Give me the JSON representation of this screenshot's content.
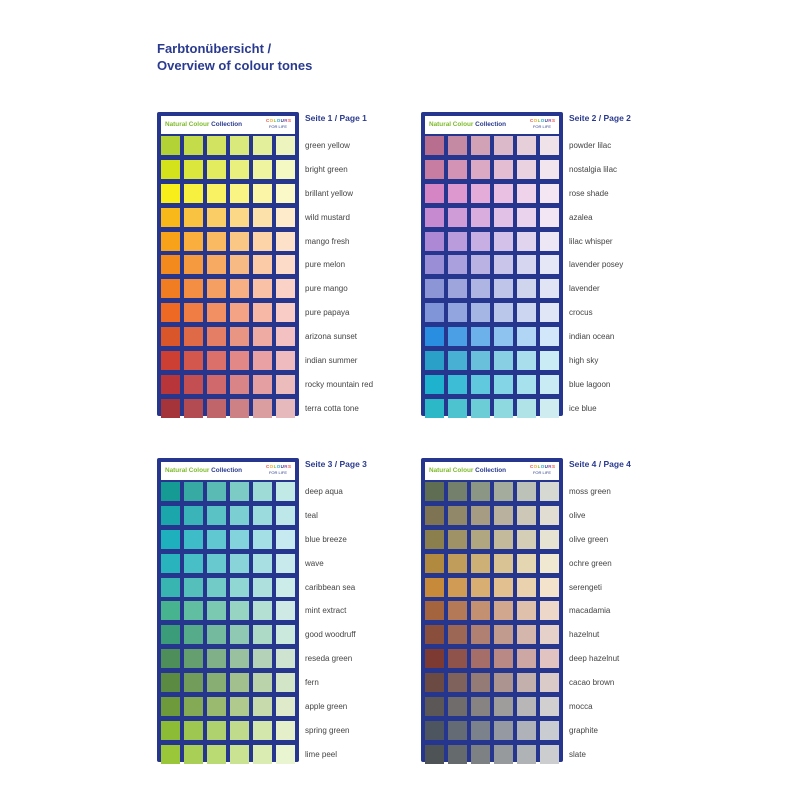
{
  "title": {
    "line1": "Farbtonübersicht /",
    "line2": "Overview of colour tones"
  },
  "card": {
    "brand_green": "Natural Colour",
    "brand_blue": "Collection",
    "cfl_line2": "FOR LIFE",
    "cfl_letters": [
      "C",
      "O",
      "L",
      "O",
      "U",
      "R",
      "S"
    ]
  },
  "pages": [
    {
      "label": "Seite 1 / Page 1",
      "rows": [
        {
          "name": "green yellow",
          "colors": [
            "#b2d235",
            "#c5dc4a",
            "#d1e361",
            "#dae97c",
            "#e4ef9b",
            "#edf4bd"
          ]
        },
        {
          "name": "bright green",
          "colors": [
            "#d4e21c",
            "#dce73d",
            "#e3ec5e",
            "#e9f07e",
            "#eff4a0",
            "#f4f8c3"
          ]
        },
        {
          "name": "brillant yellow",
          "colors": [
            "#f7ee1a",
            "#f8f03f",
            "#f9f263",
            "#faf485",
            "#fbf6a7",
            "#fcf9c8"
          ]
        },
        {
          "name": "wild mustard",
          "colors": [
            "#f9b81a",
            "#f9c240",
            "#facd66",
            "#fbd788",
            "#fce1aa",
            "#fdebcb"
          ]
        },
        {
          "name": "mango fresh",
          "colors": [
            "#f8a21a",
            "#f9ae3e",
            "#faba62",
            "#fbc785",
            "#fcd4a7",
            "#fde1c9"
          ]
        },
        {
          "name": "pure melon",
          "colors": [
            "#f38a1d",
            "#f59a3f",
            "#f7aa62",
            "#f8ba84",
            "#facba6",
            "#fcdbc8"
          ]
        },
        {
          "name": "pure mango",
          "colors": [
            "#f17d22",
            "#f38e42",
            "#f59f63",
            "#f7b084",
            "#f9c1a5",
            "#fbd3c6"
          ]
        },
        {
          "name": "pure papaya",
          "colors": [
            "#ee6a24",
            "#f07d43",
            "#f29063",
            "#f4a484",
            "#f7b8a5",
            "#f9ccc6"
          ]
        },
        {
          "name": "arizona sunset",
          "colors": [
            "#d9552a",
            "#df6a47",
            "#e47f65",
            "#e99584",
            "#eeaba3",
            "#f3c1c2"
          ]
        },
        {
          "name": "indian summer",
          "colors": [
            "#cc3f32",
            "#d4574d",
            "#db6f69",
            "#e28886",
            "#e9a1a3",
            "#f0bbbf"
          ]
        },
        {
          "name": "rocky mountain red",
          "colors": [
            "#b8363a",
            "#c44f53",
            "#cf696c",
            "#d98486",
            "#e39fa1",
            "#ecbcbd"
          ]
        },
        {
          "name": "terra cotta tone",
          "colors": [
            "#a4343a",
            "#b24c52",
            "#c0666b",
            "#cd8185",
            "#da9da0",
            "#e6babc"
          ]
        }
      ]
    },
    {
      "label": "Seite 2 / Page 2",
      "rows": [
        {
          "name": "powder lilac",
          "colors": [
            "#b86e8f",
            "#c58aa3",
            "#d1a2b6",
            "#dcb9c8",
            "#e6cfd9",
            "#efe3e9"
          ]
        },
        {
          "name": "nostalgia lilac",
          "colors": [
            "#c77ca2",
            "#d293b4",
            "#dba9c4",
            "#e3bed3",
            "#ebd2e1",
            "#f2e5ee"
          ]
        },
        {
          "name": "rose shade",
          "colors": [
            "#d584c4",
            "#dc98cf",
            "#e3acd9",
            "#e9c0e2",
            "#efd3eb",
            "#f5e6f3"
          ]
        },
        {
          "name": "azalea",
          "colors": [
            "#c68ad0",
            "#d09cd8",
            "#d9aedf",
            "#e2c1e6",
            "#ead3ed",
            "#f2e5f4"
          ]
        },
        {
          "name": "lilac whisper",
          "colors": [
            "#ad88d5",
            "#ba9bdc",
            "#c7aee3",
            "#d4c1e9",
            "#e1d4ef",
            "#ece6f5"
          ]
        },
        {
          "name": "lavender posey",
          "colors": [
            "#9a8ed6",
            "#a9a0dd",
            "#b9b2e3",
            "#c8c4ea",
            "#d7d6f0",
            "#e6e7f6"
          ]
        },
        {
          "name": "lavender",
          "colors": [
            "#8c96d6",
            "#9da5dc",
            "#aeb5e2",
            "#bfc5e8",
            "#d0d5ee",
            "#e1e4f4"
          ]
        },
        {
          "name": "crocus",
          "colors": [
            "#7f95d8",
            "#93a5de",
            "#a6b6e4",
            "#bac6ea",
            "#cdd6f0",
            "#e0e6f6"
          ]
        },
        {
          "name": "indian ocean",
          "colors": [
            "#2a8ee0",
            "#4b9fe5",
            "#6db1ea",
            "#8fc3ef",
            "#b1d5f4",
            "#d2e7f9"
          ]
        },
        {
          "name": "high sky",
          "colors": [
            "#2aa0c8",
            "#48b0d2",
            "#68c0db",
            "#88cfe4",
            "#a9deed",
            "#c9ecf5"
          ]
        },
        {
          "name": "blue lagoon",
          "colors": [
            "#1eb2cf",
            "#3ebed6",
            "#61c9dd",
            "#84d5e5",
            "#a7e1ed",
            "#c9ecf4"
          ]
        },
        {
          "name": "ice blue",
          "colors": [
            "#2cb8c7",
            "#4cc3cf",
            "#6dcdd7",
            "#8ed8df",
            "#afe3e8",
            "#cfedf1"
          ]
        }
      ]
    },
    {
      "label": "Seite 3 / Page 3",
      "rows": [
        {
          "name": "deep aqua",
          "colors": [
            "#159b93",
            "#37aba3",
            "#5abbb4",
            "#7ccbc5",
            "#9fdbd6",
            "#c1e9e5"
          ]
        },
        {
          "name": "teal",
          "colors": [
            "#1aa6ab",
            "#3ab4b8",
            "#5ac1c5",
            "#7bced1",
            "#9cdbdd",
            "#bde7e9"
          ]
        },
        {
          "name": "blue breeze",
          "colors": [
            "#1eb0bd",
            "#3ebcc7",
            "#60c8d1",
            "#82d3db",
            "#a4dfe5",
            "#c6eaef"
          ]
        },
        {
          "name": "wave",
          "colors": [
            "#28b3bd",
            "#48bec6",
            "#68c9cf",
            "#88d4d9",
            "#a8dfe2",
            "#c8eaec"
          ]
        },
        {
          "name": "caribbean sea",
          "colors": [
            "#38b5b0",
            "#55c0bb",
            "#72cbc7",
            "#90d6d2",
            "#aee1dd",
            "#cbece9"
          ]
        },
        {
          "name": "mint extract",
          "colors": [
            "#47b38f",
            "#61bea0",
            "#7cc9b1",
            "#98d4c2",
            "#b4dfd3",
            "#cfeae4"
          ]
        },
        {
          "name": "good woodruff",
          "colors": [
            "#3a9c78",
            "#56ab8b",
            "#73ba9f",
            "#90c9b3",
            "#addac7",
            "#cbe9dc"
          ]
        },
        {
          "name": "reseda green",
          "colors": [
            "#4d8e5b",
            "#659f70",
            "#7fb087",
            "#99c19f",
            "#b4d2b8",
            "#cfe3d1"
          ]
        },
        {
          "name": "fern",
          "colors": [
            "#5b8a42",
            "#719c5a",
            "#89ae74",
            "#a1c08e",
            "#bad3aa",
            "#d3e5c7"
          ]
        },
        {
          "name": "apple green",
          "colors": [
            "#6f9a3c",
            "#84aa55",
            "#9aba70",
            "#b0ca8d",
            "#c7daab",
            "#deeac9"
          ]
        },
        {
          "name": "spring green",
          "colors": [
            "#8cbc35",
            "#9dc751",
            "#afd16e",
            "#c1db8c",
            "#d3e6ab",
            "#e5f0cb"
          ]
        },
        {
          "name": "lime peel",
          "colors": [
            "#9ac63a",
            "#aacf56",
            "#badb73",
            "#cae392",
            "#daecb1",
            "#e9f4d1"
          ]
        }
      ]
    },
    {
      "label": "Seite 4 / Page 4",
      "rows": [
        {
          "name": "moss green",
          "colors": [
            "#5f6d53",
            "#74806b",
            "#8b9684",
            "#a3ac9d",
            "#bcc2b7",
            "#d5d9d1"
          ]
        },
        {
          "name": "olive",
          "colors": [
            "#7e7353",
            "#918769",
            "#a59c83",
            "#b9b19d",
            "#cdc7b8",
            "#e1ddd3"
          ]
        },
        {
          "name": "olive green",
          "colors": [
            "#8c7f4e",
            "#9e9266",
            "#b0a680",
            "#c2ba9b",
            "#d4ceb7",
            "#e6e3d3"
          ]
        },
        {
          "name": "ochre green",
          "colors": [
            "#b28a3f",
            "#c09d5a",
            "#cdb076",
            "#d9c394",
            "#e5d6b2",
            "#f0e8d1"
          ]
        },
        {
          "name": "serengeti",
          "colors": [
            "#c78a3a",
            "#d09c55",
            "#d9ae72",
            "#e2c090",
            "#ebd2ae",
            "#f3e3cd"
          ]
        },
        {
          "name": "macadamia",
          "colors": [
            "#a4643d",
            "#b47a57",
            "#c39172",
            "#d1a88e",
            "#dfc0ab",
            "#ecd7c8"
          ]
        },
        {
          "name": "hazelnut",
          "colors": [
            "#8a4f3c",
            "#9d6756",
            "#b08172",
            "#c29b8f",
            "#d4b6ad",
            "#e6d0ca"
          ]
        },
        {
          "name": "deep hazelnut",
          "colors": [
            "#7c3a32",
            "#90534c",
            "#a56e68",
            "#b98a85",
            "#cda7a4",
            "#e1c4c2"
          ]
        },
        {
          "name": "cacao brown",
          "colors": [
            "#6a4a42",
            "#7f625b",
            "#957b75",
            "#ac9591",
            "#c3b0ad",
            "#dacbc9"
          ]
        },
        {
          "name": "mocca",
          "colors": [
            "#5b5757",
            "#706c6c",
            "#878383",
            "#9f9c9c",
            "#b8b6b6",
            "#d1cfcf"
          ]
        },
        {
          "name": "graphite",
          "colors": [
            "#4d5560",
            "#646b75",
            "#7c828b",
            "#959aa2",
            "#afb3b9",
            "#c9ccd1"
          ]
        },
        {
          "name": "slate",
          "colors": [
            "#4e5355",
            "#656a6c",
            "#7d8184",
            "#969a9c",
            "#b0b3b5",
            "#cbcdce"
          ]
        }
      ]
    }
  ]
}
